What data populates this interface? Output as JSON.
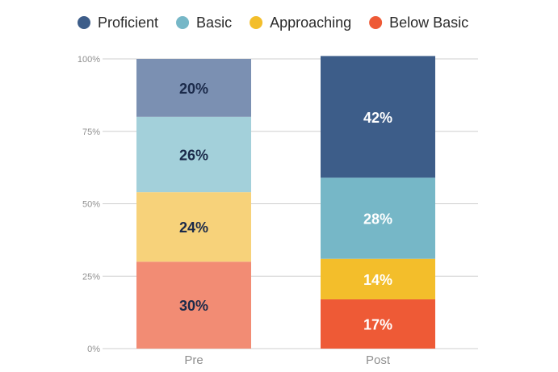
{
  "chart_data": {
    "type": "bar",
    "stacked": true,
    "categories": [
      "Pre",
      "Post"
    ],
    "series": [
      {
        "name": "Below Basic",
        "values": [
          30,
          17
        ],
        "labels": [
          "30%",
          "17%"
        ],
        "colors": [
          "#F28C74",
          "#EE5A36"
        ]
      },
      {
        "name": "Approaching",
        "values": [
          24,
          14
        ],
        "labels": [
          "24%",
          "14%"
        ],
        "colors": [
          "#F7D27A",
          "#F3BE2B"
        ]
      },
      {
        "name": "Basic",
        "values": [
          26,
          28
        ],
        "labels": [
          "26%",
          "28%"
        ],
        "colors": [
          "#A3D0DA",
          "#76B7C7"
        ]
      },
      {
        "name": "Proficient",
        "values": [
          20,
          42
        ],
        "labels": [
          "20%",
          "42%"
        ],
        "colors": [
          "#7B90B2",
          "#3D5D89"
        ]
      }
    ],
    "legend": {
      "placement": "top",
      "items": [
        {
          "name": "Proficient",
          "color": "#3D5D89"
        },
        {
          "name": "Basic",
          "color": "#76B7C7"
        },
        {
          "name": "Approaching",
          "color": "#F3BE2B"
        },
        {
          "name": "Below Basic",
          "color": "#EE5A36"
        }
      ]
    },
    "y_ticks": [
      {
        "value": 0,
        "label": "0%"
      },
      {
        "value": 25,
        "label": "25%"
      },
      {
        "value": 50,
        "label": "50%"
      },
      {
        "value": 75,
        "label": "75%"
      },
      {
        "value": 100,
        "label": "100%"
      }
    ],
    "ylim": [
      0,
      100
    ],
    "grid": true,
    "label_colors": {
      "dark": "#1B2A4A",
      "light": "#FFFFFF"
    },
    "label_color_by_category": [
      "dark",
      "light"
    ],
    "axis_text_color": "#8F8F8F",
    "grid_color": "#CFCFCF"
  }
}
